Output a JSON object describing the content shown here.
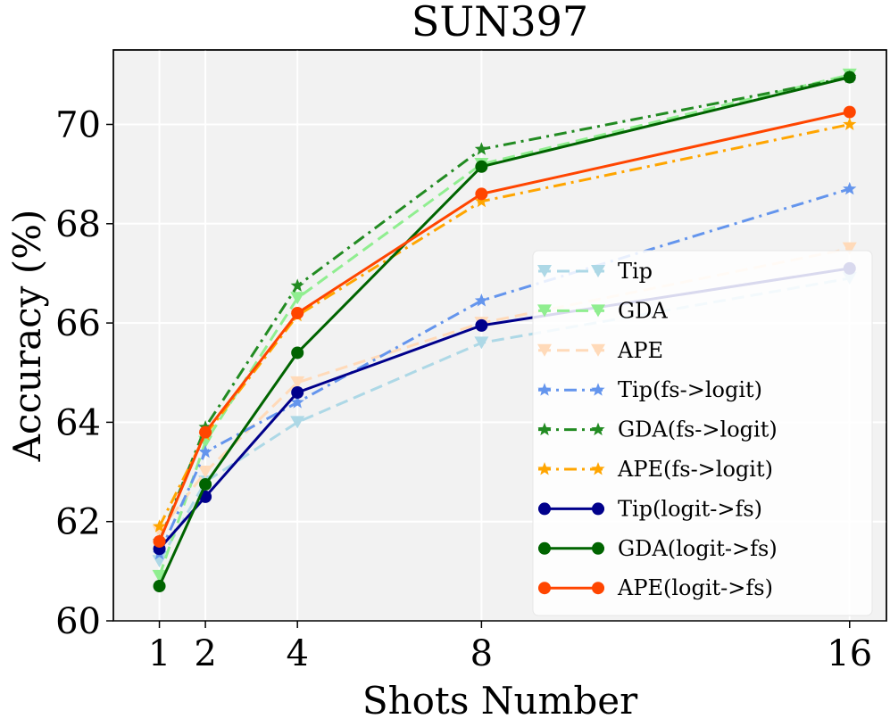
{
  "chart_data": {
    "type": "line",
    "title": "SUN397",
    "xlabel": "Shots Number",
    "ylabel": "Accuracy (%)",
    "x": [
      1,
      2,
      4,
      8,
      16
    ],
    "xticks": [
      1,
      2,
      4,
      8,
      16
    ],
    "xticklabels": [
      "1",
      "2",
      "4",
      "8",
      "16"
    ],
    "yticks": [
      60,
      62,
      64,
      66,
      68,
      70
    ],
    "yticklabels": [
      "60",
      "62",
      "64",
      "66",
      "68",
      "70"
    ],
    "xlim": [
      0.0,
      16.8
    ],
    "ylim": [
      60.0,
      71.5
    ],
    "grid": true,
    "legend_position": "lower-right",
    "series": [
      {
        "name": "Tip",
        "values": [
          61.2,
          62.8,
          64.0,
          65.6,
          66.9
        ],
        "color": "#add8e6",
        "linestyle": "dashed",
        "marker": "triangle-down"
      },
      {
        "name": "GDA",
        "values": [
          60.9,
          63.6,
          66.5,
          69.2,
          71.0
        ],
        "color": "#90ee90",
        "linestyle": "dashed",
        "marker": "triangle-down"
      },
      {
        "name": "APE",
        "values": [
          61.8,
          63.0,
          64.8,
          66.0,
          67.5
        ],
        "color": "#ffdab9",
        "linestyle": "dashed",
        "marker": "triangle-down"
      },
      {
        "name": "Tip(fs->logit)",
        "values": [
          61.35,
          63.4,
          64.4,
          66.45,
          68.7
        ],
        "color": "#6495ed",
        "linestyle": "dashdot",
        "marker": "star"
      },
      {
        "name": "GDA(fs->logit)",
        "values": [
          61.6,
          63.9,
          66.75,
          69.5,
          70.95
        ],
        "color": "#228b22",
        "linestyle": "dashdot",
        "marker": "star"
      },
      {
        "name": "APE(fs->logit)",
        "values": [
          61.9,
          63.75,
          66.15,
          68.45,
          70.0
        ],
        "color": "#ffa500",
        "linestyle": "dashdot",
        "marker": "star"
      },
      {
        "name": "Tip(logit->fs)",
        "values": [
          61.45,
          62.5,
          64.6,
          65.95,
          67.1
        ],
        "color": "#00008b",
        "linestyle": "solid",
        "marker": "circle"
      },
      {
        "name": "GDA(logit->fs)",
        "values": [
          60.7,
          62.75,
          65.4,
          69.15,
          70.95
        ],
        "color": "#006400",
        "linestyle": "solid",
        "marker": "circle"
      },
      {
        "name": "APE(logit->fs)",
        "values": [
          61.6,
          63.8,
          66.2,
          68.6,
          70.25
        ],
        "color": "#ff4500",
        "linestyle": "solid",
        "marker": "circle"
      }
    ]
  }
}
